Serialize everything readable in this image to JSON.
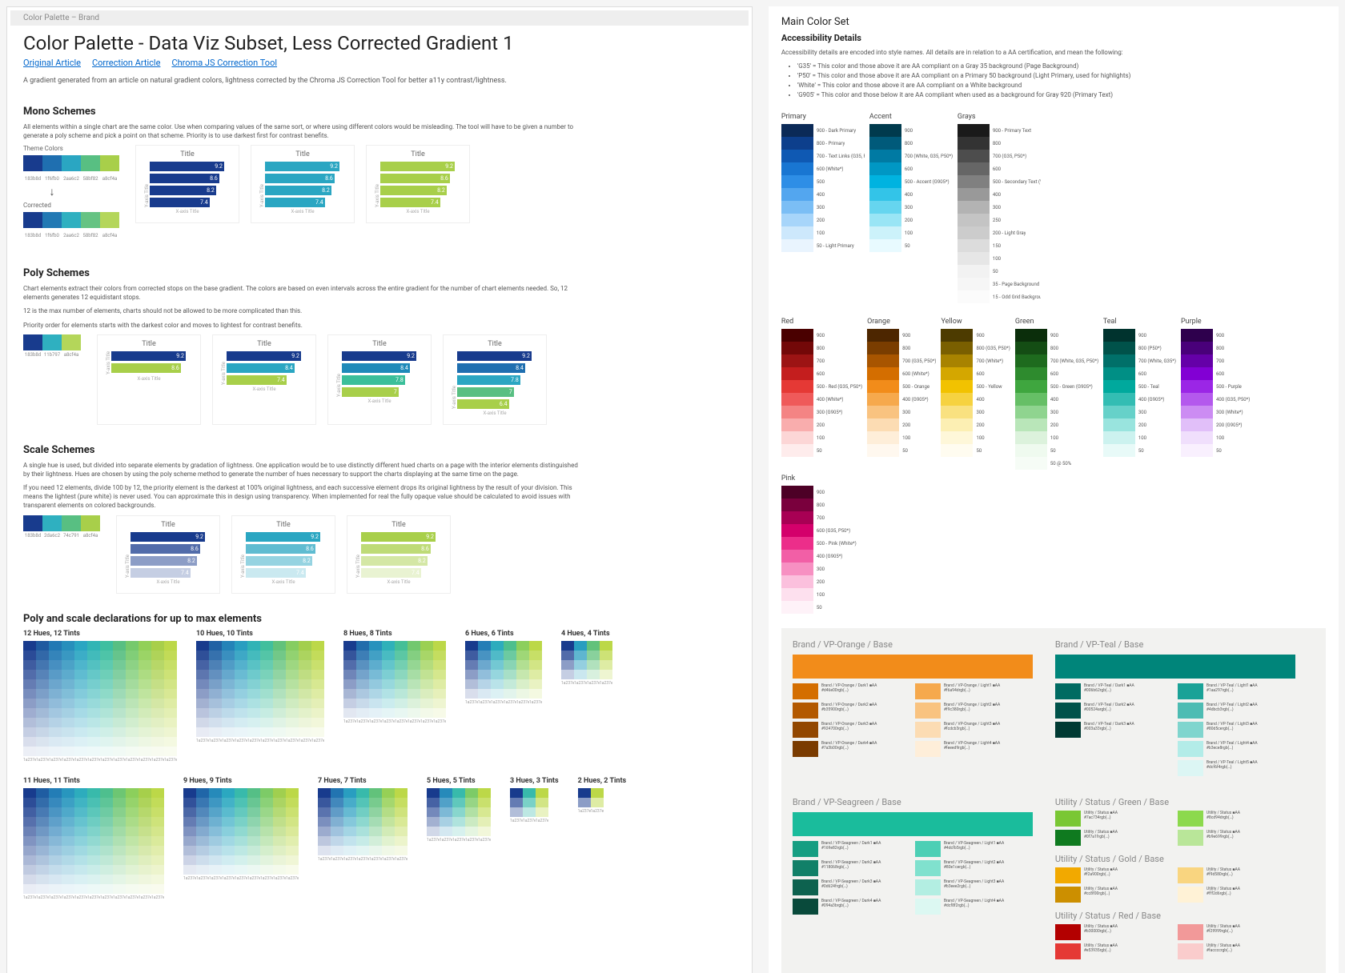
{
  "tab": "Color Palette – Brand",
  "left": {
    "title": "Color Palette - Data Viz Subset, Less Corrected Gradient 1",
    "links": [
      "Original Article",
      "Correction Article",
      "Chroma JS Correction Tool"
    ],
    "intro": "A gradient generated from an article on natural gradient colors, lightness corrected by the Chroma JS Correction Tool for better a11y contrast/lightness.",
    "mono": {
      "h": "Mono Schemes",
      "p": "All elements within a single chart are the same color. Use when comparing values of the same sort, or where using different colors would be misleading. The tool will have to be given a number to generate a poly scheme and pick a point on that scheme. Priority is to use darkest first for contrast benefits.",
      "theme_label": "Theme Colors",
      "corrected_label": "Corrected",
      "theme_colors": [
        "#183b8d",
        "#1f6fb0",
        "#2aa6c2",
        "#58bf82",
        "#a8cf4a"
      ],
      "corrected_colors": [
        "#183b8d",
        "#2279b4",
        "#2fb0c0",
        "#66c383",
        "#b4d65a"
      ],
      "theme_hex": [
        "183b8d",
        "1f6fb0",
        "2aa6c2",
        "58bf82",
        "a8cf4a"
      ],
      "charts": [
        {
          "color": "#183b8d",
          "vals": [
            9.2,
            8.6,
            8.2,
            7.4
          ]
        },
        {
          "color": "#2aa6c2",
          "vals": [
            9.2,
            8.6,
            8.2,
            7.4
          ]
        },
        {
          "color": "#a8cf4a",
          "vals": [
            9.2,
            8.6,
            8.2,
            7.4
          ]
        }
      ]
    },
    "poly": {
      "h": "Poly Schemes",
      "p1": "Chart elements extract their colors from corrected stops on the base gradient. The colors are based on even intervals across the entire gradient for the number of chart elements needed. So, 12 elements generates 12 equidistant stops.",
      "p2": "12 is the max number of elements, charts should not be allowed to be more complicated than this.",
      "p3": "Priority order for elements starts with the darkest color and moves to lightest for contrast benefits.",
      "stops3": [
        "#183b8d",
        "#2fb0c0",
        "#b4d65a"
      ],
      "stop_lbls": [
        "183b8d",
        "11b797",
        "a8cf4a"
      ],
      "charts": [
        {
          "colors": [
            "#183b8d",
            "#a8cf4a"
          ],
          "vals": [
            9.2,
            8.6
          ]
        },
        {
          "colors": [
            "#183b8d",
            "#2aa6c2",
            "#a8cf4a"
          ],
          "vals": [
            9.2,
            8.4,
            7.4
          ]
        },
        {
          "colors": [
            "#183b8d",
            "#1f8ab9",
            "#3bbf9a",
            "#a8cf4a"
          ],
          "vals": [
            9.2,
            8.4,
            7.8,
            7.0
          ]
        },
        {
          "colors": [
            "#183b8d",
            "#1f6fb0",
            "#2aa6c2",
            "#58bf82",
            "#a8cf4a"
          ],
          "vals": [
            9.2,
            8.4,
            7.8,
            7.0,
            6.4
          ]
        }
      ]
    },
    "scale": {
      "h": "Scale Schemes",
      "p1": "A single hue is used, but divided into separate elements by gradation of lightness. One application would be to use distinctly different hued charts on a page with the interior elements distinguished by their lightness. Hues are chosen by using the poly scheme method to generate the number of hues necessary to support the charts displaying at the same time on the page.",
      "p2": "If you need 12 elements, divide 100 by 12, the priority element is the darkest at 100% original lightness, and each successive element drops its original lightness by the result of your division. This means the lightest (pure white) is never used. You can approximate this in design using transparency. When implemented for real the fully opaque value should be calculated to avoid issues with transparent elements on colored backgrounds.",
      "stops": [
        "#183b8d",
        "#2fb0c0",
        "#58bf82",
        "#a8cf4a"
      ],
      "stop_lbls": [
        "183b8d",
        "2da6c2",
        "74c791",
        "a8cf4a"
      ],
      "charts": [
        {
          "base": "#183b8d",
          "vals": [
            9.2,
            8.6,
            8.2,
            7.4
          ]
        },
        {
          "base": "#2aa6c2",
          "vals": [
            9.2,
            8.6,
            8.2,
            7.4
          ]
        },
        {
          "base": "#a8cf4a",
          "vals": [
            9.2,
            8.6,
            8.2,
            7.4
          ]
        }
      ]
    },
    "decl": {
      "h": "Poly and scale declarations for up to max elements",
      "base_hues": [
        "#183b8d",
        "#1f5aa0",
        "#2279b4",
        "#278fbc",
        "#2aa6c2",
        "#31b5b5",
        "#3ebfa0",
        "#58bf82",
        "#76c96c",
        "#92d058",
        "#a8cf4a",
        "#bcd848"
      ],
      "grids": [
        {
          "n": 12,
          "title": "12 Hues, 12 Tints"
        },
        {
          "n": 10,
          "title": "10 Hues, 10 Tints"
        },
        {
          "n": 8,
          "title": "8 Hues, 8 Tints"
        },
        {
          "n": 6,
          "title": "6 Hues, 6 Tints"
        },
        {
          "n": 4,
          "title": "4 Hues, 4 Tints"
        },
        {
          "n": 11,
          "title": "11 Hues, 11 Tints"
        },
        {
          "n": 9,
          "title": "9 Hues, 9 Tints"
        },
        {
          "n": 7,
          "title": "7 Hues, 7 Tints"
        },
        {
          "n": 5,
          "title": "5 Hues, 5 Tints"
        },
        {
          "n": 3,
          "title": "3 Hues, 3 Tints"
        },
        {
          "n": 2,
          "title": "2 Hues, 2 Tints"
        }
      ]
    }
  },
  "right": {
    "title": "Main Color Set",
    "acc_h": "Accessibility Details",
    "acc_intro": "Accessibility details are encoded into style names. All details are in relation to a AA certification, and mean the following:",
    "acc_items": [
      "'G35' = This color and those above it are AA compliant on a Gray 35 background (Page Background)",
      "'P50' = This color and those above it are AA compliant on a Primary 50 background (Light Primary, used for highlights)",
      "'White' = This color and those above it are AA compliant on a White background",
      "'G905' = This color and those below it are AA compliant when used as a background for Gray 920 (Primary Text)"
    ],
    "palettes": {
      "Primary": {
        "steps": [
          [
            "900",
            "#0b2a57",
            "900 - Dark Primary"
          ],
          [
            "800",
            "#0d3f8c",
            "800 - Primary"
          ],
          [
            "700",
            "#0f59b3",
            "700 - Text Links (G35, P50*)"
          ],
          [
            "600",
            "#1976d2",
            "600 (White*)"
          ],
          [
            "500",
            "#2e8ee6",
            ""
          ],
          [
            "400",
            "#53a6ef",
            ""
          ],
          [
            "300",
            "#7bbef5",
            ""
          ],
          [
            "200",
            "#a7d5fa",
            ""
          ],
          [
            "100",
            "#cde8fc",
            ""
          ],
          [
            "50",
            "#e9f4fe",
            "50 - Light Primary"
          ]
        ]
      },
      "Accent": {
        "steps": [
          [
            "900",
            "#003a4d",
            ""
          ],
          [
            "800",
            "#005a7a",
            ""
          ],
          [
            "700",
            "#007aa3",
            "700 (White, G35, P50*)"
          ],
          [
            "600",
            "#0097c4",
            ""
          ],
          [
            "500",
            "#00b3e0",
            "500 - Accent (G905*)"
          ],
          [
            "400",
            "#33c4e8",
            ""
          ],
          [
            "300",
            "#66d5ef",
            ""
          ],
          [
            "200",
            "#99e5f5",
            ""
          ],
          [
            "100",
            "#ccf2fa",
            ""
          ],
          [
            "50",
            "#e8faff",
            ""
          ]
        ]
      },
      "Grays": {
        "steps": [
          [
            "900",
            "#1a1a1a",
            "900 - Primary Text"
          ],
          [
            "800",
            "#333333",
            ""
          ],
          [
            "700",
            "#4d4d4d",
            "700 (G35, P50*)"
          ],
          [
            "600",
            "#666666",
            ""
          ],
          [
            "500",
            "#808080",
            "500 - Secondary Text (White*)"
          ],
          [
            "400",
            "#999999",
            ""
          ],
          [
            "300",
            "#b3b3b3",
            ""
          ],
          [
            "250",
            "#c4c4c4",
            ""
          ],
          [
            "200",
            "#cccccc",
            "200 - Light Gray"
          ],
          [
            "150",
            "#dcdcdc",
            ""
          ],
          [
            "100",
            "#e6e6e6",
            ""
          ],
          [
            "50",
            "#f2f2f2",
            ""
          ],
          [
            "35",
            "#f6f6f6",
            "35 - Page Background"
          ],
          [
            "15",
            "#fbfbfb",
            "15 - Odd Grid Background"
          ]
        ]
      },
      "Red": {
        "steps": [
          [
            "900",
            "#4a0000",
            ""
          ],
          [
            "800",
            "#730808",
            ""
          ],
          [
            "700",
            "#9c1414",
            ""
          ],
          [
            "600",
            "#c41e1e",
            ""
          ],
          [
            "500",
            "#e53935",
            "500 - Red (G35, P50*)"
          ],
          [
            "400",
            "#ef5a5a",
            "400 (White*)"
          ],
          [
            "300",
            "#f48484",
            "300 (G905*)"
          ],
          [
            "200",
            "#f9adad",
            ""
          ],
          [
            "100",
            "#fcd6d6",
            ""
          ],
          [
            "50",
            "#feecec",
            ""
          ]
        ]
      },
      "Orange": {
        "steps": [
          [
            "900",
            "#4d2600",
            ""
          ],
          [
            "800",
            "#7a3d00",
            ""
          ],
          [
            "700",
            "#a85500",
            "700 (G35, P50*)"
          ],
          [
            "600",
            "#d46e00",
            "600 (White*)"
          ],
          [
            "500",
            "#f28c1a",
            "500 - Orange"
          ],
          [
            "400",
            "#f6a94d",
            "400 (G905*)"
          ],
          [
            "300",
            "#f9c380",
            ""
          ],
          [
            "200",
            "#fcdcb3",
            ""
          ],
          [
            "100",
            "#feeed9",
            ""
          ],
          [
            "50",
            "#fff8ef",
            ""
          ]
        ]
      },
      "Yellow": {
        "steps": [
          [
            "900",
            "#4d3b00",
            ""
          ],
          [
            "800",
            "#7a5f00",
            "800 (G35, P50*)"
          ],
          [
            "700",
            "#a88300",
            "700 (White*)"
          ],
          [
            "600",
            "#d4a700",
            ""
          ],
          [
            "500",
            "#f2c200",
            "500 - Yellow"
          ],
          [
            "400",
            "#f6d240",
            ""
          ],
          [
            "300",
            "#f9e180",
            ""
          ],
          [
            "200",
            "#fcefb3",
            ""
          ],
          [
            "100",
            "#fef7d9",
            ""
          ],
          [
            "50",
            "#fffcf0",
            ""
          ]
        ]
      },
      "Green": {
        "steps": [
          [
            "900",
            "#0b2e0b",
            ""
          ],
          [
            "800",
            "#144d14",
            ""
          ],
          [
            "700",
            "#1e6b1e",
            "700 (White, G35, P50*)"
          ],
          [
            "600",
            "#2e8b2e",
            ""
          ],
          [
            "500",
            "#3fa63f",
            "500 - Green (G905*)"
          ],
          [
            "400",
            "#66bf66",
            ""
          ],
          [
            "300",
            "#8fd48f",
            ""
          ],
          [
            "200",
            "#b9e6b9",
            ""
          ],
          [
            "100",
            "#dcf2dc",
            ""
          ],
          [
            "50",
            "#effaef",
            ""
          ],
          [
            "50a",
            "#f6fcf6",
            "50 @ 50%"
          ]
        ]
      },
      "Teal": {
        "steps": [
          [
            "900",
            "#00332e",
            ""
          ],
          [
            "800",
            "#00524a",
            "800 (P50*)"
          ],
          [
            "700",
            "#007069",
            "700 (White, G35*)"
          ],
          [
            "600",
            "#008f85",
            ""
          ],
          [
            "500",
            "#00a99d",
            "500 - Teal"
          ],
          [
            "400",
            "#33bdb3",
            "400 (G905*)"
          ],
          [
            "300",
            "#66d1c9",
            ""
          ],
          [
            "200",
            "#99e4de",
            ""
          ],
          [
            "100",
            "#ccf2ef",
            ""
          ],
          [
            "50",
            "#e8faf8",
            ""
          ]
        ]
      },
      "Purple": {
        "steps": [
          [
            "900",
            "#2e004d",
            ""
          ],
          [
            "800",
            "#49007a",
            ""
          ],
          [
            "700",
            "#6500a8",
            "700"
          ],
          [
            "600",
            "#8200d4",
            ""
          ],
          [
            "500",
            "#9b26e6",
            "500 - Purple"
          ],
          [
            "400",
            "#b459ed",
            "400 (G35, P50*)"
          ],
          [
            "300",
            "#cc8cf3",
            "300 (White*)"
          ],
          [
            "200",
            "#e1bff9",
            "200 (G905*)"
          ],
          [
            "100",
            "#f0dffc",
            ""
          ],
          [
            "50",
            "#f9f0fe",
            ""
          ]
        ]
      },
      "Pink": {
        "steps": [
          [
            "900",
            "#4d0026",
            ""
          ],
          [
            "800",
            "#7a003d",
            ""
          ],
          [
            "700",
            "#a80054",
            ""
          ],
          [
            "600",
            "#d4006b",
            "600 (G35, P50*)"
          ],
          [
            "500",
            "#ec2e8a",
            "500 - Pink (White*)"
          ],
          [
            "400",
            "#f25fa6",
            "400 (G905*)"
          ],
          [
            "300",
            "#f790c2",
            ""
          ],
          [
            "200",
            "#fbc0dd",
            ""
          ],
          [
            "100",
            "#fde0ee",
            ""
          ],
          [
            "50",
            "#fef2f8",
            ""
          ]
        ]
      }
    },
    "brands": [
      {
        "title": "Brand / VP-Orange / Base",
        "hero": "#f28c1a",
        "darks": [
          "#d46e00",
          "#b35900",
          "#924700",
          "#7a3b00"
        ],
        "lights": [
          "#f6a94d",
          "#f9c380",
          "#fcdcb3",
          "#feeed9"
        ],
        "name_stub": "Brand / VP-Orange"
      },
      {
        "title": "Brand / VP-Teal / Base",
        "hero": "#00857a",
        "darks": [
          "#006b62",
          "#00524a",
          "#003a33"
        ],
        "lights": [
          "#1aa297",
          "#4dbcb3",
          "#80d5ce",
          "#b3ece8",
          "#dcf6f4"
        ],
        "name_stub": "Brand / VP-Teal"
      },
      {
        "title": "Brand / VP-Seagreen / Base",
        "hero": "#1abc9c",
        "darks": [
          "#169e82",
          "#118068",
          "#0d624f",
          "#094a3b"
        ],
        "lights": [
          "#4dcfb5",
          "#80e1ce",
          "#b3eee2",
          "#dcf8f2"
        ],
        "name_stub": "Brand / VP-Seagreen"
      }
    ],
    "utilities": [
      {
        "title": "Utility / Status / Green / Base",
        "rows": [
          [
            "#7ac734",
            "#8cd94d"
          ],
          [
            "#0f7a1f",
            "#b9e699"
          ]
        ]
      },
      {
        "title": "Utility / Status / Gold / Base",
        "rows": [
          [
            "#f2a900",
            "#f9d580"
          ],
          [
            "#cc8f00",
            "#fff2d6"
          ]
        ]
      },
      {
        "title": "Utility / Status / Red / Base",
        "rows": [
          [
            "#b30000",
            "#f29999"
          ],
          [
            "#e53935",
            "#facccc"
          ]
        ]
      }
    ]
  }
}
